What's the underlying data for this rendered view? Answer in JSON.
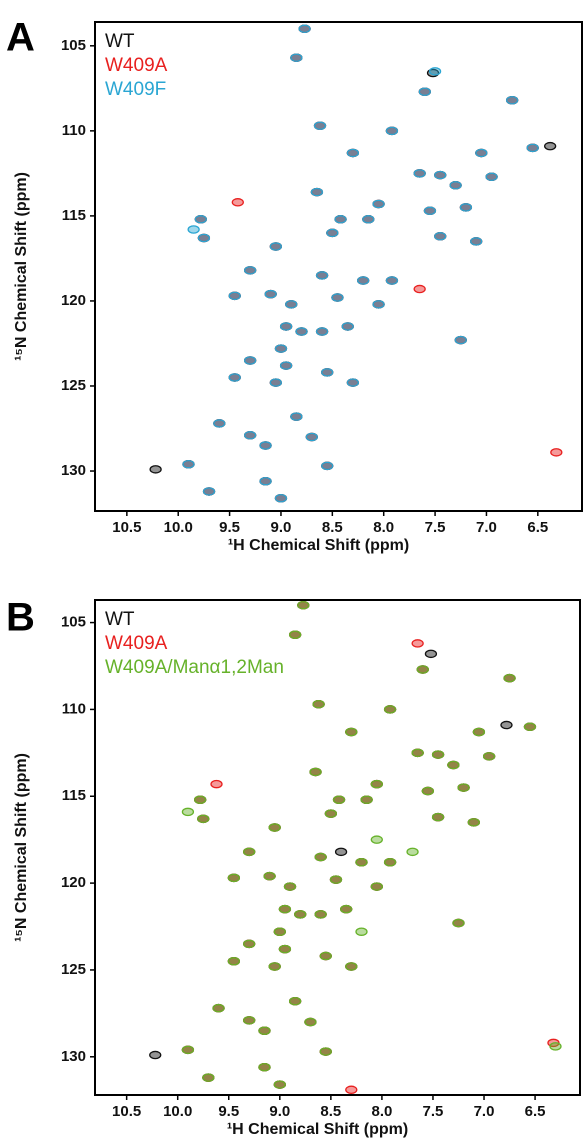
{
  "chart_data": [
    {
      "type": "scatter",
      "panel_label": "A",
      "xlabel": "¹H Chemical Shift (ppm)",
      "ylabel": "¹⁵N Chemical Shift (ppm)",
      "xlim": [
        10.81,
        6.07
      ],
      "ylim": [
        103.6,
        132.35
      ],
      "xticks": [
        10.5,
        {
          "value": 10,
          "label": "10.0"
        },
        9.5,
        {
          "value": 9,
          "label": "9.0"
        },
        8.5,
        {
          "value": 8,
          "label": "8.0"
        },
        7.5,
        {
          "value": 7,
          "label": "7.0"
        },
        6.5
      ],
      "yticks": [
        105,
        110,
        115,
        120,
        125,
        130
      ],
      "series": [
        {
          "name": "WT",
          "color": "#111111",
          "x": [
            8.77,
            8.85,
            7.6,
            6.75,
            8.62,
            7.92,
            6.55,
            8.3,
            7.05,
            7.65,
            7.45,
            6.95,
            8.65,
            7.3,
            8.42,
            8.15,
            9.78,
            9.75,
            8.05,
            7.55,
            7.2,
            8.5,
            7.45,
            7.1,
            9.05,
            9.3,
            8.6,
            8.2,
            7.92,
            9.45,
            9.1,
            8.45,
            8.05,
            8.9,
            8.95,
            8.8,
            8.6,
            8.35,
            9.0,
            7.25,
            9.3,
            8.95,
            8.55,
            9.45,
            9.05,
            8.3,
            9.6,
            8.85,
            9.3,
            9.15,
            8.7,
            8.55,
            9.9,
            9.15,
            9.7,
            9.0,
            10.22,
            7.52,
            6.38
          ],
          "y": [
            104.0,
            105.7,
            107.7,
            108.2,
            109.7,
            110.0,
            111.0,
            111.3,
            111.3,
            112.5,
            112.6,
            112.7,
            113.6,
            113.2,
            115.2,
            115.2,
            115.2,
            116.3,
            114.3,
            114.7,
            114.5,
            116.0,
            116.2,
            116.5,
            116.8,
            118.2,
            118.5,
            118.8,
            118.8,
            119.7,
            119.6,
            119.8,
            120.2,
            120.2,
            121.5,
            121.8,
            121.8,
            121.5,
            122.8,
            122.3,
            123.5,
            123.8,
            124.2,
            124.5,
            124.8,
            124.8,
            127.2,
            126.8,
            127.9,
            128.5,
            128.0,
            129.7,
            129.6,
            130.6,
            131.2,
            131.6,
            129.9,
            106.6,
            110.9
          ]
        },
        {
          "name": "W409A",
          "color": "#e8201f",
          "x": [
            8.77,
            8.85,
            7.6,
            6.75,
            8.62,
            7.92,
            6.55,
            8.3,
            7.05,
            7.65,
            7.45,
            6.95,
            8.65,
            7.3,
            8.42,
            8.15,
            9.78,
            9.75,
            8.05,
            7.55,
            7.2,
            8.5,
            7.45,
            7.1,
            9.05,
            9.3,
            8.6,
            8.2,
            7.92,
            9.45,
            9.1,
            8.45,
            8.05,
            8.9,
            8.95,
            8.8,
            8.6,
            8.35,
            9.0,
            7.25,
            9.3,
            8.95,
            8.55,
            9.45,
            9.05,
            8.3,
            9.6,
            8.85,
            9.3,
            9.15,
            8.7,
            8.55,
            9.9,
            9.15,
            9.7,
            9.0,
            9.42,
            7.65,
            6.32
          ],
          "y": [
            104.0,
            105.7,
            107.7,
            108.2,
            109.7,
            110.0,
            111.0,
            111.3,
            111.3,
            112.5,
            112.6,
            112.7,
            113.6,
            113.2,
            115.2,
            115.2,
            115.2,
            116.3,
            114.3,
            114.7,
            114.5,
            116.0,
            116.2,
            116.5,
            116.8,
            118.2,
            118.5,
            118.8,
            118.8,
            119.7,
            119.6,
            119.8,
            120.2,
            120.2,
            121.5,
            121.8,
            121.8,
            121.5,
            122.8,
            122.3,
            123.5,
            123.8,
            124.2,
            124.5,
            124.8,
            124.8,
            127.2,
            126.8,
            127.9,
            128.5,
            128.0,
            129.7,
            129.6,
            130.6,
            131.2,
            131.6,
            114.2,
            119.3,
            128.9
          ]
        },
        {
          "name": "W409F",
          "color": "#2aa6d3",
          "x": [
            8.77,
            8.85,
            7.6,
            6.75,
            8.62,
            7.92,
            6.55,
            8.3,
            7.05,
            7.65,
            7.45,
            6.95,
            8.65,
            7.3,
            8.42,
            8.15,
            9.78,
            9.75,
            8.05,
            7.55,
            7.2,
            8.5,
            7.45,
            7.1,
            9.05,
            9.3,
            8.6,
            8.2,
            7.92,
            9.45,
            9.1,
            8.45,
            8.05,
            8.9,
            8.95,
            8.8,
            8.6,
            8.35,
            9.0,
            7.25,
            9.3,
            8.95,
            8.55,
            9.45,
            9.05,
            8.3,
            9.6,
            8.85,
            9.3,
            9.15,
            8.7,
            8.55,
            9.9,
            9.15,
            9.7,
            9.0,
            9.85,
            7.5
          ],
          "y": [
            104.0,
            105.7,
            107.7,
            108.2,
            109.7,
            110.0,
            111.0,
            111.3,
            111.3,
            112.5,
            112.6,
            112.7,
            113.6,
            113.2,
            115.2,
            115.2,
            115.2,
            116.3,
            114.3,
            114.7,
            114.5,
            116.0,
            116.2,
            116.5,
            116.8,
            118.2,
            118.5,
            118.8,
            118.8,
            119.7,
            119.6,
            119.8,
            120.2,
            120.2,
            121.5,
            121.8,
            121.8,
            121.5,
            122.8,
            122.3,
            123.5,
            123.8,
            124.2,
            124.5,
            124.8,
            124.8,
            127.2,
            126.8,
            127.9,
            128.5,
            128.0,
            129.7,
            129.6,
            130.6,
            131.2,
            131.6,
            115.8,
            106.5
          ]
        }
      ]
    },
    {
      "type": "scatter",
      "panel_label": "B",
      "xlabel": "¹H Chemical Shift (ppm)",
      "ylabel": "¹⁵N Chemical Shift (ppm)",
      "xlim": [
        10.81,
        6.06
      ],
      "ylim": [
        103.7,
        132.2
      ],
      "xticks": [
        10.5,
        {
          "value": 10,
          "label": "10.0"
        },
        9.5,
        {
          "value": 9,
          "label": "9.0"
        },
        8.5,
        {
          "value": 8,
          "label": "8.0"
        },
        7.5,
        {
          "value": 7,
          "label": "7.0"
        },
        6.5
      ],
      "yticks": [
        105,
        110,
        115,
        120,
        125,
        130
      ],
      "series": [
        {
          "name": "WT",
          "color": "#111111",
          "x": [
            8.77,
            8.85,
            7.6,
            6.75,
            8.62,
            7.92,
            6.55,
            8.3,
            7.05,
            7.65,
            7.45,
            6.95,
            8.65,
            7.3,
            8.42,
            8.15,
            9.78,
            9.75,
            8.05,
            7.55,
            7.2,
            8.5,
            7.45,
            7.1,
            9.05,
            9.3,
            8.6,
            8.2,
            7.92,
            9.45,
            9.1,
            8.45,
            8.05,
            8.9,
            8.95,
            8.8,
            8.6,
            8.35,
            9.0,
            7.25,
            9.3,
            8.95,
            8.55,
            9.45,
            9.05,
            8.3,
            9.6,
            8.85,
            9.3,
            9.15,
            8.7,
            8.55,
            9.9,
            9.15,
            9.7,
            9.0,
            10.22,
            7.52,
            6.78,
            8.4
          ],
          "y": [
            104.0,
            105.7,
            107.7,
            108.2,
            109.7,
            110.0,
            111.0,
            111.3,
            111.3,
            112.5,
            112.6,
            112.7,
            113.6,
            113.2,
            115.2,
            115.2,
            115.2,
            116.3,
            114.3,
            114.7,
            114.5,
            116.0,
            116.2,
            116.5,
            116.8,
            118.2,
            118.5,
            118.8,
            118.8,
            119.7,
            119.6,
            119.8,
            120.2,
            120.2,
            121.5,
            121.8,
            121.8,
            121.5,
            122.8,
            122.3,
            123.5,
            123.8,
            124.2,
            124.5,
            124.8,
            124.8,
            127.2,
            126.8,
            127.9,
            128.5,
            128.0,
            129.7,
            129.6,
            130.6,
            131.2,
            131.6,
            129.9,
            106.8,
            110.9,
            118.2
          ]
        },
        {
          "name": "W409A",
          "color": "#e8201f",
          "x": [
            8.77,
            8.85,
            7.6,
            6.75,
            8.62,
            7.92,
            6.55,
            8.3,
            7.05,
            7.65,
            7.45,
            6.95,
            8.65,
            7.3,
            8.42,
            8.15,
            9.78,
            9.75,
            8.05,
            7.55,
            7.2,
            8.5,
            7.45,
            7.1,
            9.05,
            9.3,
            8.6,
            8.2,
            7.92,
            9.45,
            9.1,
            8.45,
            8.05,
            8.9,
            8.95,
            8.8,
            8.6,
            8.35,
            9.0,
            7.25,
            9.3,
            8.95,
            8.55,
            9.45,
            9.05,
            8.3,
            9.6,
            8.85,
            9.3,
            9.15,
            8.7,
            8.55,
            9.9,
            9.15,
            9.7,
            9.0,
            9.62,
            7.65,
            6.32,
            8.3
          ],
          "y": [
            104.0,
            105.7,
            107.7,
            108.2,
            109.7,
            110.0,
            111.0,
            111.3,
            111.3,
            112.5,
            112.6,
            112.7,
            113.6,
            113.2,
            115.2,
            115.2,
            115.2,
            116.3,
            114.3,
            114.7,
            114.5,
            116.0,
            116.2,
            116.5,
            116.8,
            118.2,
            118.5,
            118.8,
            118.8,
            119.7,
            119.6,
            119.8,
            120.2,
            120.2,
            121.5,
            121.8,
            121.8,
            121.5,
            122.8,
            122.3,
            123.5,
            123.8,
            124.2,
            124.5,
            124.8,
            124.8,
            127.2,
            126.8,
            127.9,
            128.5,
            128.0,
            129.7,
            129.6,
            130.6,
            131.2,
            131.6,
            114.3,
            106.2,
            129.2,
            131.9
          ]
        },
        {
          "name": "W409A/Manα1,2Man",
          "color": "#66b22a",
          "x": [
            8.77,
            8.85,
            7.6,
            6.75,
            8.62,
            7.92,
            6.55,
            8.3,
            7.05,
            7.65,
            7.45,
            6.95,
            8.65,
            7.3,
            8.42,
            8.15,
            9.78,
            9.75,
            8.05,
            7.55,
            7.2,
            8.5,
            7.45,
            7.1,
            9.05,
            9.3,
            8.6,
            8.2,
            7.92,
            9.45,
            9.1,
            8.45,
            8.05,
            8.9,
            8.95,
            8.8,
            8.6,
            8.35,
            9.0,
            7.25,
            9.3,
            8.95,
            8.55,
            9.45,
            9.05,
            8.3,
            9.6,
            8.85,
            9.3,
            9.15,
            8.7,
            8.55,
            9.9,
            9.15,
            9.7,
            9.0,
            9.9,
            8.05,
            7.7,
            8.2,
            6.3
          ],
          "y": [
            104.0,
            105.7,
            107.7,
            108.2,
            109.7,
            110.0,
            111.0,
            111.3,
            111.3,
            112.5,
            112.6,
            112.7,
            113.6,
            113.2,
            115.2,
            115.2,
            115.2,
            116.3,
            114.3,
            114.7,
            114.5,
            116.0,
            116.2,
            116.5,
            116.8,
            118.2,
            118.5,
            118.8,
            118.8,
            119.7,
            119.6,
            119.8,
            120.2,
            120.2,
            121.5,
            121.8,
            121.8,
            121.5,
            122.8,
            122.3,
            123.5,
            123.8,
            124.2,
            124.5,
            124.8,
            124.8,
            127.2,
            126.8,
            127.9,
            128.5,
            128.0,
            129.7,
            129.6,
            130.6,
            131.2,
            131.6,
            115.9,
            117.5,
            118.2,
            122.8,
            129.4
          ]
        }
      ]
    }
  ]
}
